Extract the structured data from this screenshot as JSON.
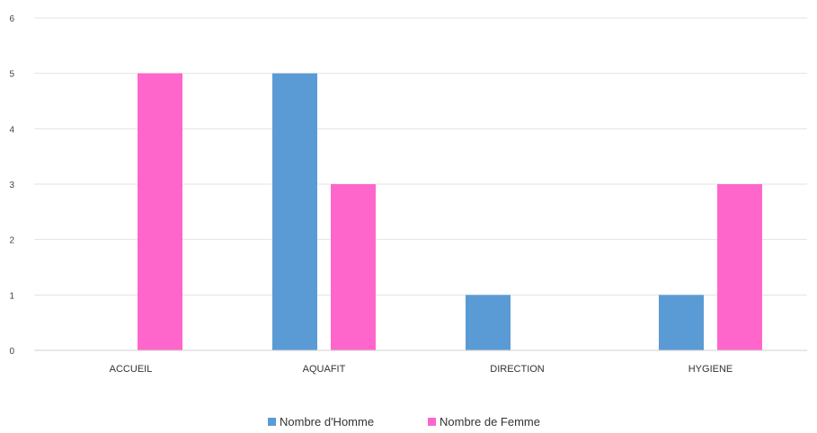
{
  "chart_data": {
    "type": "bar",
    "categories": [
      "ACCUEIL",
      "AQUAFIT",
      "DIRECTION",
      "HYGIENE"
    ],
    "series": [
      {
        "name": "Nombre d'Homme",
        "values": [
          0,
          5,
          1,
          1
        ],
        "color": "#5b9bd5"
      },
      {
        "name": "Nombre de Femme",
        "values": [
          5,
          3,
          0,
          3
        ],
        "color": "#ff66cc"
      }
    ],
    "ylim": [
      0,
      6
    ],
    "yticks": [
      "0",
      "1",
      "2",
      "3",
      "4",
      "5",
      "6"
    ],
    "grid": true,
    "legend": "bottom",
    "title": "",
    "xlabel": "",
    "ylabel": ""
  }
}
